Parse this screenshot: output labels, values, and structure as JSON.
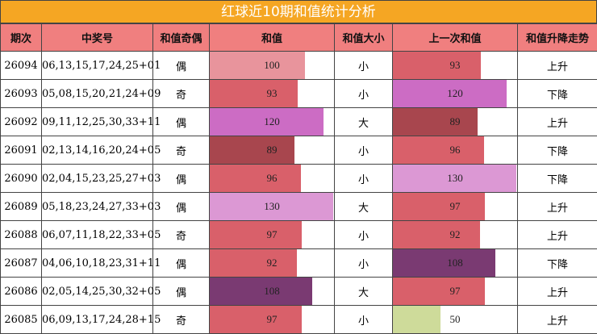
{
  "title": "红球近10期和值统计分析",
  "headers": [
    "期次",
    "中奖号",
    "和值奇偶",
    "和值",
    "和值大小",
    "上一次和值",
    "和值升降走势"
  ],
  "max_sum": 130,
  "colors": {
    "title_bg": "#f5a623",
    "header_bg": "#f07f7f",
    "bar_100": "#e8949c",
    "bar_93": "#d9606a",
    "bar_120": "#cc6cc4",
    "bar_89": "#a8464e",
    "bar_96": "#d9606a",
    "bar_130": "#dc98d4",
    "bar_97": "#d9606a",
    "bar_92": "#d9606a",
    "bar_108": "#7a3a72",
    "bar_50": "#cedb9a"
  },
  "rows": [
    {
      "period": "26094",
      "numbers": "06,13,15,17,24,25+01",
      "parity": "偶",
      "sum": 100,
      "size": "小",
      "prev_sum": 93,
      "trend": "上升"
    },
    {
      "period": "26093",
      "numbers": "05,08,15,20,21,24+09",
      "parity": "奇",
      "sum": 93,
      "size": "小",
      "prev_sum": 120,
      "trend": "下降"
    },
    {
      "period": "26092",
      "numbers": "09,11,12,25,30,33+11",
      "parity": "偶",
      "sum": 120,
      "size": "大",
      "prev_sum": 89,
      "trend": "上升"
    },
    {
      "period": "26091",
      "numbers": "02,13,14,16,20,24+05",
      "parity": "奇",
      "sum": 89,
      "size": "小",
      "prev_sum": 96,
      "trend": "下降"
    },
    {
      "period": "26090",
      "numbers": "02,04,15,23,25,27+03",
      "parity": "偶",
      "sum": 96,
      "size": "小",
      "prev_sum": 130,
      "trend": "下降"
    },
    {
      "period": "26089",
      "numbers": "05,18,23,24,27,33+03",
      "parity": "偶",
      "sum": 130,
      "size": "大",
      "prev_sum": 97,
      "trend": "上升"
    },
    {
      "period": "26088",
      "numbers": "06,07,11,18,22,33+05",
      "parity": "奇",
      "sum": 97,
      "size": "小",
      "prev_sum": 92,
      "trend": "上升"
    },
    {
      "period": "26087",
      "numbers": "04,06,10,18,23,31+11",
      "parity": "偶",
      "sum": 92,
      "size": "小",
      "prev_sum": 108,
      "trend": "下降"
    },
    {
      "period": "26086",
      "numbers": "02,05,14,25,30,32+05",
      "parity": "偶",
      "sum": 108,
      "size": "大",
      "prev_sum": 97,
      "trend": "上升"
    },
    {
      "period": "26085",
      "numbers": "06,09,13,17,24,28+15",
      "parity": "奇",
      "sum": 97,
      "size": "小",
      "prev_sum": 50,
      "trend": "上升"
    }
  ]
}
